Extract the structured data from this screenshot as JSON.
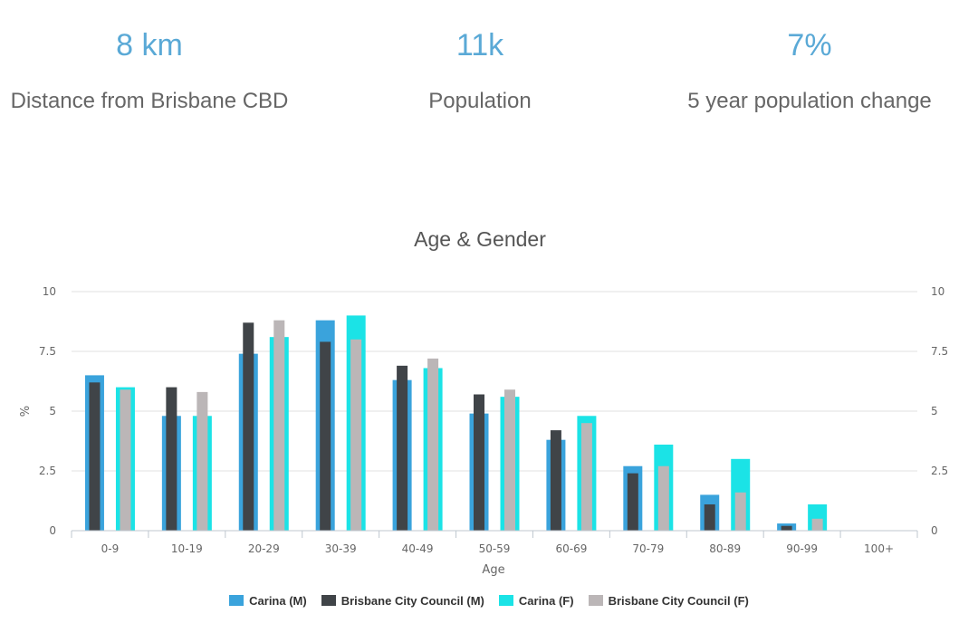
{
  "stats": [
    {
      "value": "8 km",
      "label": "Distance from Brisbane CBD"
    },
    {
      "value": "11k",
      "label": "Population"
    },
    {
      "value": "7%",
      "label": "5 year population change"
    }
  ],
  "chart_data": {
    "type": "bar",
    "title": "Age & Gender",
    "xlabel": "Age",
    "ylabel": "%",
    "ylim": [
      0,
      10
    ],
    "yticks": [
      "0",
      "2.5",
      "5",
      "7.5",
      "10"
    ],
    "categories": [
      "0-9",
      "10-19",
      "20-29",
      "30-39",
      "40-49",
      "50-59",
      "60-69",
      "70-79",
      "80-89",
      "90-99",
      "100+"
    ],
    "series": [
      {
        "name": "Carina (M)",
        "color": "#3aa3dc",
        "values": [
          6.5,
          4.8,
          7.4,
          8.8,
          6.3,
          4.9,
          3.8,
          2.7,
          1.5,
          0.3,
          0
        ]
      },
      {
        "name": "Brisbane City Council (M)",
        "color": "#404448",
        "values": [
          6.2,
          6.0,
          8.7,
          7.9,
          6.9,
          5.7,
          4.2,
          2.4,
          1.1,
          0.2,
          0
        ]
      },
      {
        "name": "Carina (F)",
        "color": "#1be3e6",
        "values": [
          6.0,
          4.8,
          8.1,
          9.0,
          6.8,
          5.6,
          4.8,
          3.6,
          3.0,
          1.1,
          0
        ]
      },
      {
        "name": "Brisbane City Council (F)",
        "color": "#bbb6b7",
        "values": [
          5.9,
          5.8,
          8.8,
          8.0,
          7.2,
          5.9,
          4.5,
          2.7,
          1.6,
          0.5,
          0
        ]
      }
    ]
  }
}
